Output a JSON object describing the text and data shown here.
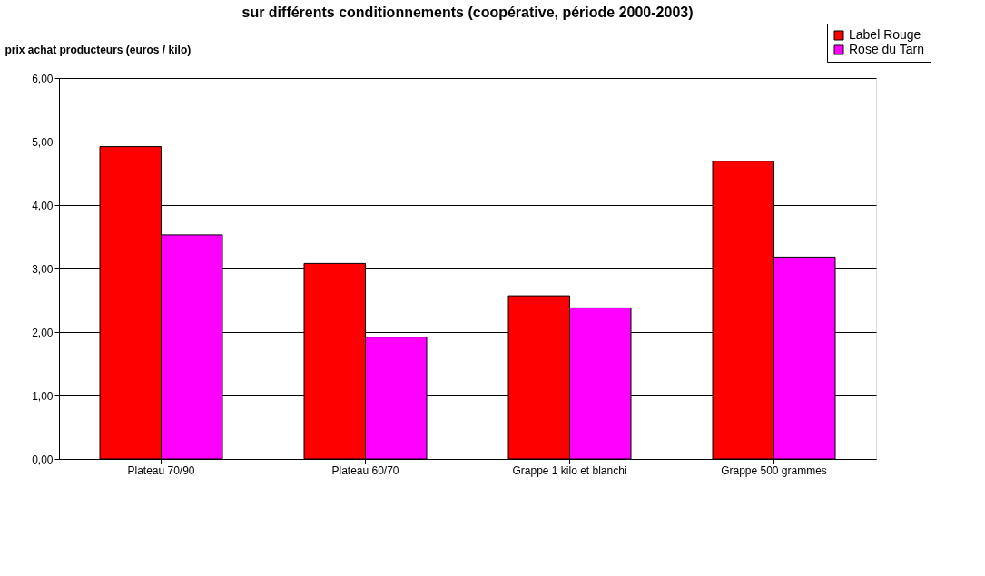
{
  "chart_data": {
    "type": "bar",
    "title": "sur différents conditionnements (coopérative, période 2000-2003)",
    "ylabel": "prix achat producteurs (euros / kilo)",
    "categories": [
      "Plateau 70/90",
      "Plateau 60/70",
      "Grappe 1 kilo et blanchi",
      "Grappe 500 grammes"
    ],
    "series": [
      {
        "name": "Label Rouge",
        "color": "#ff0000",
        "values": [
          4.92,
          3.08,
          2.57,
          4.69
        ]
      },
      {
        "name": "Rose du Tarn",
        "color": "#ff00ff",
        "values": [
          3.53,
          1.92,
          2.38,
          3.18
        ]
      }
    ],
    "ylim": [
      0,
      6
    ],
    "yticks": [
      {
        "value": 0,
        "label": "0,00"
      },
      {
        "value": 1,
        "label": "1,00"
      },
      {
        "value": 2,
        "label": "2,00"
      },
      {
        "value": 3,
        "label": "3,00"
      },
      {
        "value": 4,
        "label": "4,00"
      },
      {
        "value": 5,
        "label": "5,00"
      },
      {
        "value": 6,
        "label": "6,00"
      }
    ],
    "grid": "y",
    "legend": "top right"
  }
}
